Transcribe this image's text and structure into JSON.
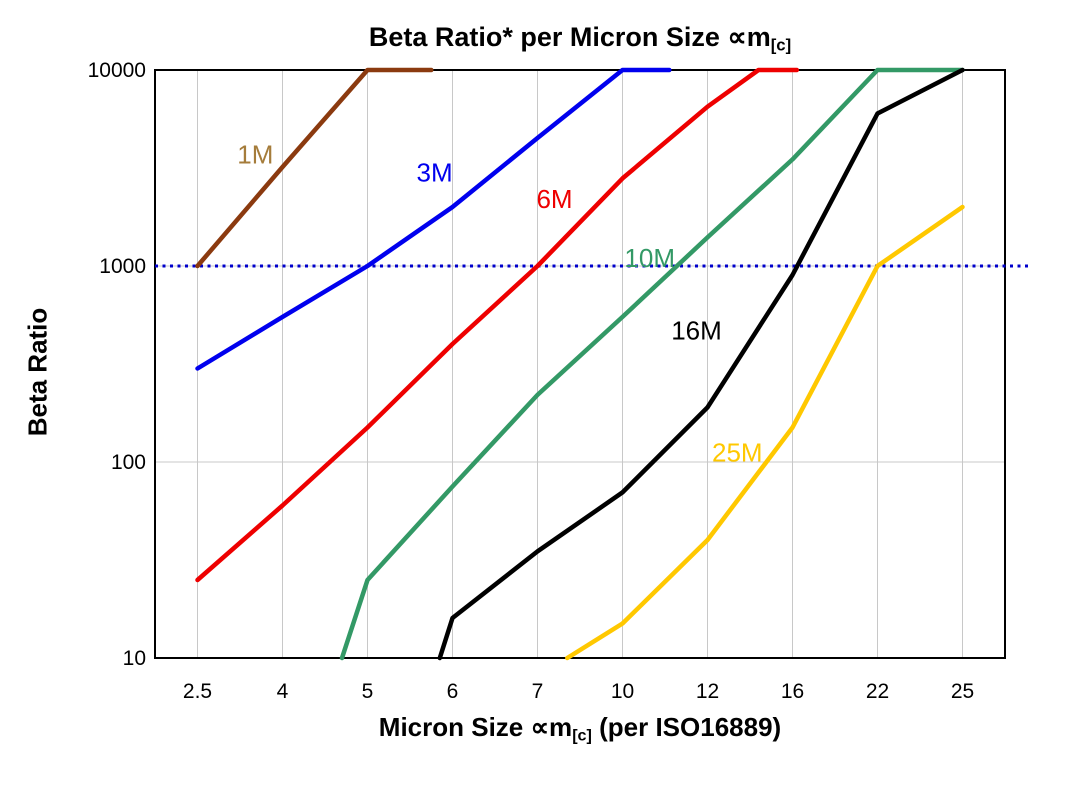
{
  "page": {
    "background": "#ffffff"
  },
  "title_parts": {
    "prefix": "Beta Ratio* per Micron Size ",
    "symbol": "∝m",
    "subscript": "[c]"
  },
  "xlabel_parts": {
    "prefix": "Micron Size ",
    "symbol": "∝m",
    "subscript": "[c]",
    "suffix": " (per ISO16889)"
  },
  "chart_data": {
    "type": "line",
    "title": "Beta Ratio* per Micron Size ∝m[c]",
    "xlabel": "Micron Size ∝m[c] (per ISO16889)",
    "ylabel": "Beta Ratio",
    "x_categories": [
      "2.5",
      "4",
      "5",
      "6",
      "7",
      "10",
      "12",
      "16",
      "22",
      "25"
    ],
    "y_ticks": [
      10,
      100,
      1000,
      10000
    ],
    "y_scale": "log",
    "ylim": [
      10,
      10000
    ],
    "grid": true,
    "grid_color": "#C8C8C8",
    "legend": "inline-labels",
    "reference_line": {
      "value": 1000,
      "color": "#0000CC",
      "style": "dotted"
    },
    "series": [
      {
        "name": "1M",
        "color": "#8B3A0F",
        "label_color": "#A57C3B",
        "label_at": [
          0.68,
          3700
        ],
        "points": [
          [
            0,
            1000
          ],
          [
            1,
            3200
          ],
          [
            2,
            10000
          ],
          [
            2.75,
            10000
          ]
        ]
      },
      {
        "name": "3M",
        "color": "#0000EE",
        "label_at": [
          2.79,
          3000
        ],
        "points": [
          [
            0,
            300
          ],
          [
            1,
            550
          ],
          [
            2,
            1000
          ],
          [
            3,
            2000
          ],
          [
            4,
            4500
          ],
          [
            5,
            10000
          ],
          [
            5.55,
            10000
          ]
        ]
      },
      {
        "name": "6M",
        "color": "#EE0000",
        "label_at": [
          4.2,
          2200
        ],
        "points": [
          [
            0,
            25
          ],
          [
            1,
            60
          ],
          [
            2,
            150
          ],
          [
            3,
            400
          ],
          [
            4,
            1000
          ],
          [
            5,
            2800
          ],
          [
            6,
            6500
          ],
          [
            6.6,
            10000
          ],
          [
            7.05,
            10000
          ]
        ]
      },
      {
        "name": "10M",
        "color": "#339966",
        "label_at": [
          5.32,
          1100
        ],
        "points": [
          [
            1.7,
            10
          ],
          [
            2,
            25
          ],
          [
            3,
            75
          ],
          [
            4,
            220
          ],
          [
            5,
            550
          ],
          [
            6,
            1400
          ],
          [
            7,
            3500
          ],
          [
            8,
            10000
          ],
          [
            9,
            10000
          ]
        ]
      },
      {
        "name": "16M",
        "color": "#000000",
        "label_at": [
          5.87,
          470
        ],
        "points": [
          [
            2.85,
            10
          ],
          [
            3,
            16
          ],
          [
            4,
            35
          ],
          [
            5,
            70
          ],
          [
            6,
            190
          ],
          [
            7,
            900
          ],
          [
            8,
            6000
          ],
          [
            9,
            10000
          ]
        ]
      },
      {
        "name": "25M",
        "color": "#FFC800",
        "label_at": [
          6.35,
          112
        ],
        "points": [
          [
            4.35,
            10
          ],
          [
            5,
            15
          ],
          [
            6,
            40
          ],
          [
            7,
            150
          ],
          [
            8,
            1000
          ],
          [
            9,
            2000
          ]
        ]
      }
    ]
  }
}
